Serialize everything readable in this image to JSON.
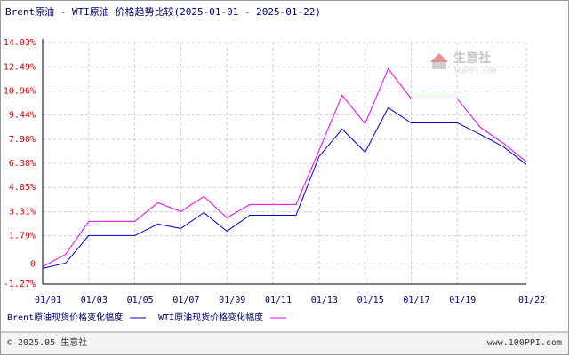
{
  "chart_data": {
    "type": "line",
    "title": "Brent原油 - WTI原油 价格趋势比较(2025-01-01 - 2025-01-22)",
    "categories": [
      "01/01",
      null,
      "01/03",
      null,
      "01/05",
      null,
      "01/07",
      null,
      "01/09",
      null,
      "01/11",
      null,
      "01/13",
      null,
      "01/15",
      null,
      "01/17",
      null,
      "01/19",
      null,
      null,
      "01/22"
    ],
    "series": [
      {
        "name": "Brent原油现货价格变化幅度",
        "color": "#0000cc",
        "values": [
          -0.28,
          0.06,
          1.8,
          1.8,
          1.8,
          2.53,
          2.25,
          3.26,
          2.08,
          3.09,
          3.09,
          3.09,
          6.81,
          8.55,
          7.09,
          9.9,
          8.94,
          8.94,
          8.94,
          8.21,
          7.43,
          6.3
        ]
      },
      {
        "name": "WTI原油现货价格变化幅度",
        "color": "#ee00ee",
        "values": [
          -0.17,
          0.62,
          2.7,
          2.7,
          2.7,
          3.88,
          3.32,
          4.28,
          2.93,
          3.77,
          3.77,
          3.77,
          7.2,
          10.69,
          8.89,
          12.38,
          10.46,
          10.46,
          10.46,
          8.66,
          7.65,
          6.47
        ]
      }
    ],
    "ylim": [
      -1.27,
      14.03
    ],
    "yticks": [
      {
        "value": -1.27,
        "label": "-1.27%"
      },
      0,
      {
        "value": 1.79,
        "label": "1.79%"
      },
      {
        "value": 3.31,
        "label": "3.31%"
      },
      {
        "value": 4.85,
        "label": "4.85%"
      },
      {
        "value": 6.38,
        "label": "6.38%"
      },
      {
        "value": 7.9,
        "label": "7.90%"
      },
      {
        "value": 9.44,
        "label": "9.44%"
      },
      {
        "value": 10.96,
        "label": "10.96%"
      },
      {
        "value": 12.49,
        "label": "12.49%"
      },
      {
        "value": 14.03,
        "label": "14.03%"
      }
    ],
    "grid": true
  },
  "watermark": {
    "brand": "生意社",
    "url": "100PPI.COM"
  },
  "footer": {
    "copyright": "© 2025.05 生意社",
    "site": "www.100PPI.com"
  }
}
